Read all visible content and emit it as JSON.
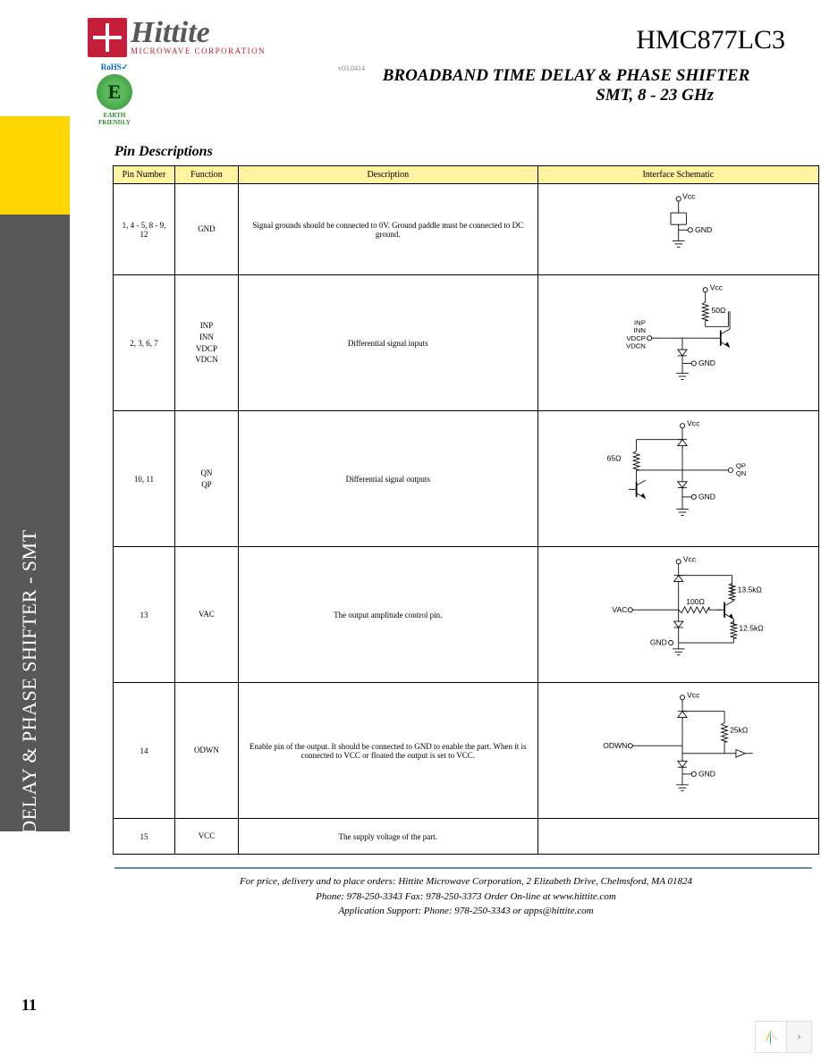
{
  "side_title": "BROADBAND TIME DELAY & PHASE SHIFTER - SMT",
  "page_number": "11",
  "brand": "Hittite",
  "tagline": "MICROWAVE CORPORATION",
  "version": "v03.0414",
  "rohs_top": "RoHS✓",
  "rohs_e": "E",
  "rohs_bot": "EARTH FRIENDLY",
  "part_number": "HMC877LC3",
  "doc_title": "BROADBAND TIME DELAY & PHASE SHIFTER",
  "doc_subtitle": "SMT, 8 - 23 GHz",
  "section_title": "Pin Descriptions",
  "table": {
    "headers": [
      "Pin Number",
      "Function",
      "Description",
      "Interface Schematic"
    ],
    "rows": [
      {
        "pin": "1, 4 - 5, 8 - 9, 12",
        "fn": [
          "GND"
        ],
        "desc": "Signal grounds should be connected to 0V. Ground paddle must be connected to DC ground.",
        "sch": "gnd",
        "h": "sch-small"
      },
      {
        "pin": "2, 3, 6, 7",
        "fn": [
          "INP",
          "INN",
          "VDCP",
          "VDCN"
        ],
        "desc": "Differential signal inputs",
        "sch": "inp",
        "h": ""
      },
      {
        "pin": "10, 11",
        "fn": [
          "QN",
          "QP"
        ],
        "desc": "Differential signal outputs",
        "sch": "out",
        "h": ""
      },
      {
        "pin": "13",
        "fn": [
          "VAC"
        ],
        "desc": "The output amplitude control pin.",
        "sch": "vac",
        "h": ""
      },
      {
        "pin": "14",
        "fn": [
          "ODWN"
        ],
        "desc": "Enable pin of the output. It should be connected to GND to enable the part. When it is connected to VCC or floated the output is set to VCC.",
        "sch": "odwn",
        "h": ""
      },
      {
        "pin": "15",
        "fn": [
          "VCC"
        ],
        "desc": "The supply voltage of the part.",
        "sch": "none",
        "h": "sch-tiny"
      }
    ]
  },
  "sch_labels": {
    "vcc": "Vcc",
    "gnd": "GND",
    "r50": "50Ω",
    "r65": "65Ω",
    "r100": "100Ω",
    "r13k5": "13.5kΩ",
    "r12k5": "12.5kΩ",
    "r25k": "25kΩ",
    "inp_stack": "INP\nINN\nVDCP\nVDCN",
    "qpqn": "QP\nQN",
    "vac": "VAC",
    "odwn": "ODWN"
  },
  "footer": {
    "line1": "For price, delivery and to place orders: Hittite Microwave Corporation, 2 Elizabeth Drive, Chelmsford, MA 01824",
    "line2": "Phone: 978-250-3343   Fax: 978-250-3373   Order On-line at www.hittite.com",
    "line3": "Application Support: Phone: 978-250-3343  or  apps@hittite.com"
  },
  "nav_logo_color1": "#f4c430",
  "nav_logo_color2": "#8bc34a",
  "nav_logo_color3": "#03a9f4"
}
